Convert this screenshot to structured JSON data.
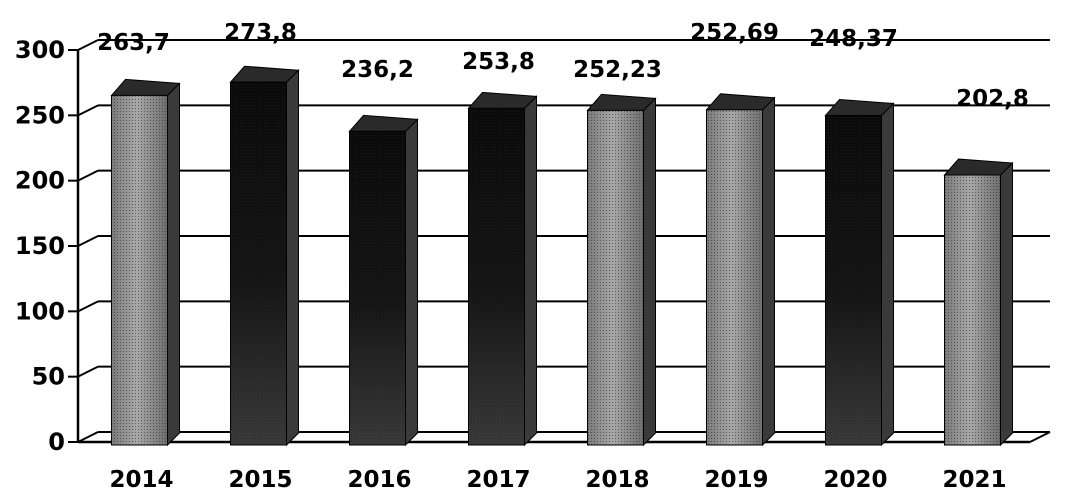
{
  "chart_data": {
    "type": "bar",
    "style": "3d-column",
    "categories": [
      "2014",
      "2015",
      "2016",
      "2017",
      "2018",
      "2019",
      "2020",
      "2021"
    ],
    "values": [
      263.7,
      273.8,
      236.2,
      253.8,
      252.23,
      252.69,
      248.37,
      202.8
    ],
    "data_labels": [
      "263,7",
      "273,8",
      "236,2",
      "253,8",
      "252,23",
      "252,69",
      "248,37",
      "202,8"
    ],
    "y_ticks": [
      "0",
      "50",
      "100",
      "150",
      "200",
      "250",
      "300"
    ],
    "ylim": [
      0,
      300
    ],
    "title": "",
    "xlabel": "",
    "ylabel": "",
    "grid": true,
    "legend": "none",
    "colors": {
      "bar_fill_light": "#9a9a9a",
      "bar_fill_dark": "#141414",
      "bar_side": "#3a3a3a",
      "bar_top": "#2a2a2a",
      "grid": "#000000",
      "text": "#000000"
    }
  }
}
